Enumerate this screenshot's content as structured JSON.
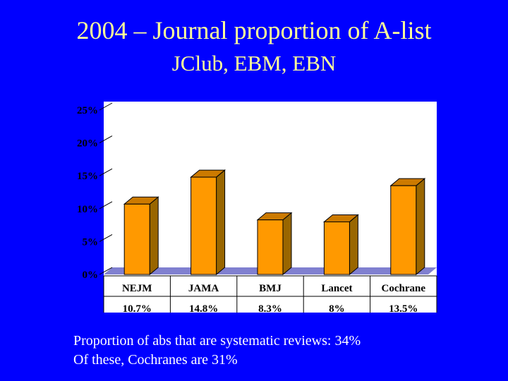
{
  "slide": {
    "title": "2004 – Journal proportion of A-list",
    "subtitle": "JClub, EBM, EBN",
    "footnotes": [
      "Proportion of abs that are systematic reviews: 34%",
      "Of these, Cochranes are 31%"
    ]
  },
  "colors": {
    "background": "#0000FF",
    "title": "#FFFF99",
    "plot_area": "#FFFFFF",
    "bar_front": "#FF9900",
    "bar_side": "#996600",
    "bar_top": "#CC7A00",
    "floor": "#8080D0",
    "text": "#000000"
  },
  "chart_data": {
    "type": "bar",
    "categories": [
      "NEJM",
      "JAMA",
      "BMJ",
      "Lancet",
      "Cochrane"
    ],
    "values": [
      10.7,
      14.8,
      8.3,
      8,
      13.5
    ],
    "value_labels": [
      "10.7%",
      "14.8%",
      "8.3%",
      "8%",
      "13.5%"
    ],
    "y_ticks": [
      "0%",
      "5%",
      "10%",
      "15%",
      "20%",
      "25%"
    ],
    "ylim": [
      0,
      25
    ],
    "grid": false,
    "legend": "none",
    "three_d": true
  }
}
